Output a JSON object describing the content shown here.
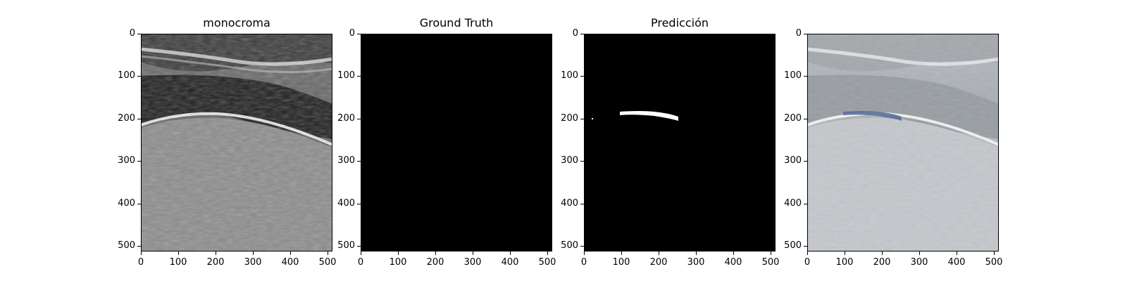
{
  "panels": [
    {
      "title": "monocroma",
      "image": "ultrasound-grayscale"
    },
    {
      "title": "Ground Truth",
      "image": "empty-mask"
    },
    {
      "title": "Predicción",
      "image": "predicted-mask"
    },
    {
      "title": "",
      "image": "ultrasound-overlay-prediction"
    }
  ],
  "axes": {
    "x_ticks": [
      "0",
      "100",
      "200",
      "300",
      "400",
      "500"
    ],
    "y_ticks": [
      "0",
      "100",
      "200",
      "300",
      "400",
      "500"
    ],
    "xlim": [
      0,
      512
    ],
    "ylim": [
      512,
      0
    ]
  },
  "colors": {
    "mask_fill": "#ffffff",
    "mask_background": "#000000",
    "overlay_fill": "#5a6f9a"
  }
}
